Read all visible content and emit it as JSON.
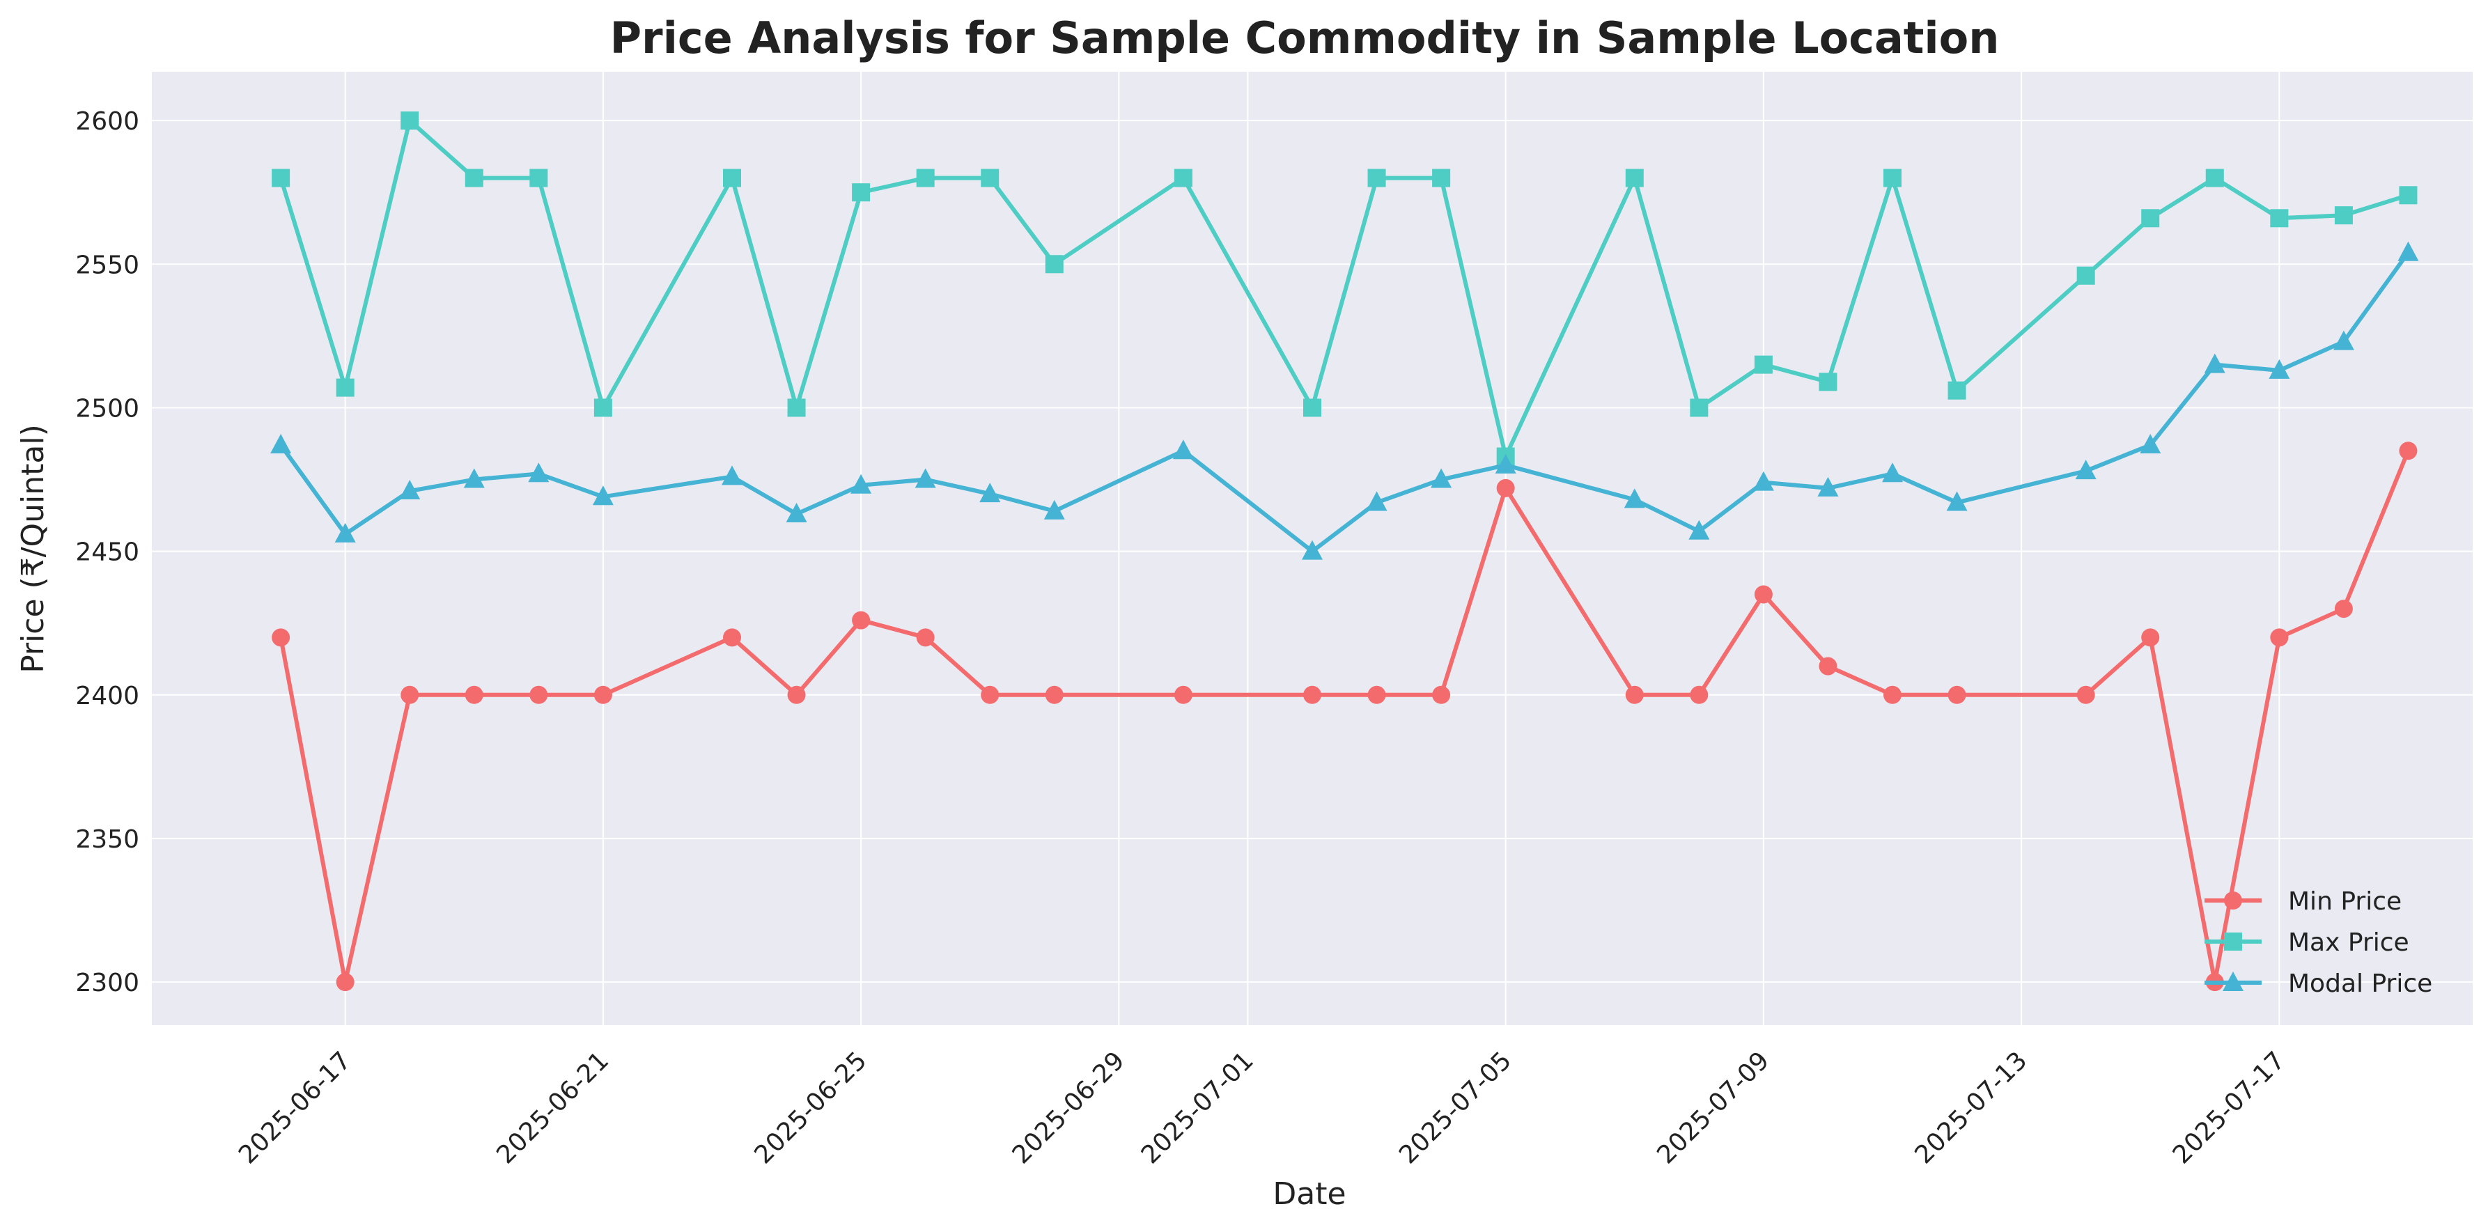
{
  "chart_data": {
    "type": "line",
    "title": "Price Analysis for Sample Commodity in Sample Location",
    "xlabel": "Date",
    "ylabel": "Price (₹/Quintal)",
    "x_ticks": [
      "2025-06-17",
      "2025-06-21",
      "2025-06-25",
      "2025-06-29",
      "2025-07-01",
      "2025-07-05",
      "2025-07-09",
      "2025-07-13",
      "2025-07-17"
    ],
    "y_ticks": [
      2300,
      2350,
      2400,
      2450,
      2500,
      2550,
      2600
    ],
    "ylim": [
      2285,
      2617
    ],
    "xlim": [
      "2025-06-14",
      "2025-07-20"
    ],
    "grid": true,
    "legend_position": "lower-right",
    "x": [
      "2025-06-16",
      "2025-06-17",
      "2025-06-18",
      "2025-06-19",
      "2025-06-20",
      "2025-06-21",
      "2025-06-23",
      "2025-06-24",
      "2025-06-25",
      "2025-06-26",
      "2025-06-27",
      "2025-06-28",
      "2025-06-30",
      "2025-07-02",
      "2025-07-03",
      "2025-07-04",
      "2025-07-05",
      "2025-07-07",
      "2025-07-08",
      "2025-07-09",
      "2025-07-10",
      "2025-07-11",
      "2025-07-12",
      "2025-07-14",
      "2025-07-15",
      "2025-07-16",
      "2025-07-17",
      "2025-07-18",
      "2025-07-19"
    ],
    "series": [
      {
        "name": "Min Price",
        "color": "#f36b6d",
        "marker": "circle",
        "values": [
          2420,
          2300,
          2400,
          2400,
          2400,
          2400,
          2420,
          2400,
          2426,
          2420,
          2400,
          2400,
          2400,
          2400,
          2400,
          2400,
          2472,
          2400,
          2400,
          2435,
          2410,
          2400,
          2400,
          2400,
          2420,
          2300,
          2420,
          2430,
          2485
        ]
      },
      {
        "name": "Max Price",
        "color": "#4ecdc4",
        "marker": "square",
        "values": [
          2580,
          2507,
          2600,
          2580,
          2580,
          2500,
          2580,
          2500,
          2575,
          2580,
          2580,
          2550,
          2580,
          2500,
          2580,
          2580,
          2483,
          2580,
          2500,
          2515,
          2509,
          2580,
          2506,
          2546,
          2566,
          2580,
          2566,
          2567,
          2574
        ]
      },
      {
        "name": "Modal Price",
        "color": "#45b3d4",
        "marker": "triangle",
        "values": [
          2487,
          2456,
          2471,
          2475,
          2477,
          2469,
          2476,
          2463,
          2473,
          2475,
          2470,
          2464,
          2485,
          2450,
          2467,
          2475,
          2480,
          2468,
          2457,
          2474,
          2472,
          2477,
          2467,
          2478,
          2487,
          2515,
          2513,
          2523,
          2554
        ]
      }
    ]
  }
}
